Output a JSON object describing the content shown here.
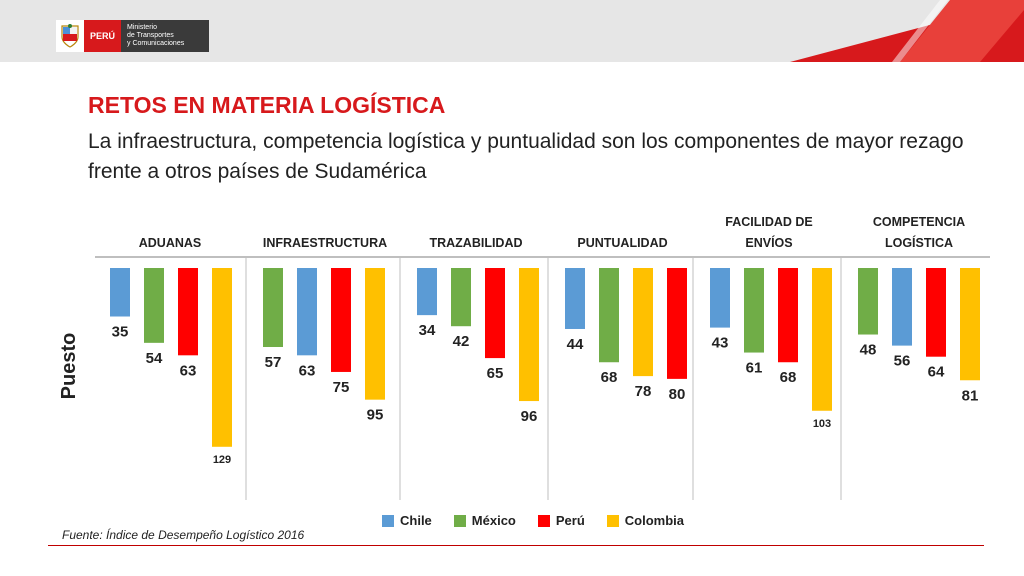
{
  "header": {
    "logo_label": "PERÚ",
    "ministry_line1": "Ministerio",
    "ministry_line2": "de Transportes",
    "ministry_line3": "y Comunicaciones"
  },
  "title": "RETOS EN MATERIA LOGÍSTICA",
  "subtitle": "La infraestructura, competencia logística y puntualidad son los componentes de mayor rezago frente a otros países de Sudamérica",
  "source": "Fuente: Índice de Desempeño Logístico 2016",
  "colors": {
    "Chile": "#5b9bd5",
    "México": "#70ad47",
    "Perú": "#ff0000",
    "Colombia": "#ffc000",
    "brand_red": "#d7191c"
  },
  "chart_data": {
    "type": "bar",
    "ylabel": "Puesto",
    "orientation": "vertical-downward",
    "value_range": [
      0,
      130
    ],
    "legend": [
      "Chile",
      "México",
      "Perú",
      "Colombia"
    ],
    "legend_position": "bottom",
    "groups": [
      {
        "label": "ADUANAS",
        "bars": [
          {
            "country": "Chile",
            "value": 35
          },
          {
            "country": "México",
            "value": 54
          },
          {
            "country": "Perú",
            "value": 63
          },
          {
            "country": "Colombia",
            "value": 129
          }
        ]
      },
      {
        "label": "INFRAESTRUCTURA",
        "bars": [
          {
            "country": "México",
            "value": 57
          },
          {
            "country": "Chile",
            "value": 63
          },
          {
            "country": "Perú",
            "value": 75
          },
          {
            "country": "Colombia",
            "value": 95
          }
        ]
      },
      {
        "label": "TRAZABILIDAD",
        "bars": [
          {
            "country": "Chile",
            "value": 34
          },
          {
            "country": "México",
            "value": 42
          },
          {
            "country": "Perú",
            "value": 65
          },
          {
            "country": "Colombia",
            "value": 96
          }
        ]
      },
      {
        "label": "PUNTUALIDAD",
        "bars": [
          {
            "country": "Chile",
            "value": 44
          },
          {
            "country": "México",
            "value": 68
          },
          {
            "country": "Colombia",
            "value": 78
          },
          {
            "country": "Perú",
            "value": 80
          }
        ]
      },
      {
        "label": "FACILIDAD DE ENVÍOS",
        "label_lines": [
          "FACILIDAD DE",
          "ENVÍOS"
        ],
        "bars": [
          {
            "country": "Chile",
            "value": 43
          },
          {
            "country": "México",
            "value": 61
          },
          {
            "country": "Perú",
            "value": 68
          },
          {
            "country": "Colombia",
            "value": 103
          }
        ]
      },
      {
        "label": "COMPETENCIA LOGÍSTICA",
        "label_lines": [
          "COMPETENCIA",
          "LOGÍSTICA"
        ],
        "bars": [
          {
            "country": "México",
            "value": 48
          },
          {
            "country": "Chile",
            "value": 56
          },
          {
            "country": "Perú",
            "value": 64
          },
          {
            "country": "Colombia",
            "value": 81
          }
        ]
      }
    ]
  }
}
